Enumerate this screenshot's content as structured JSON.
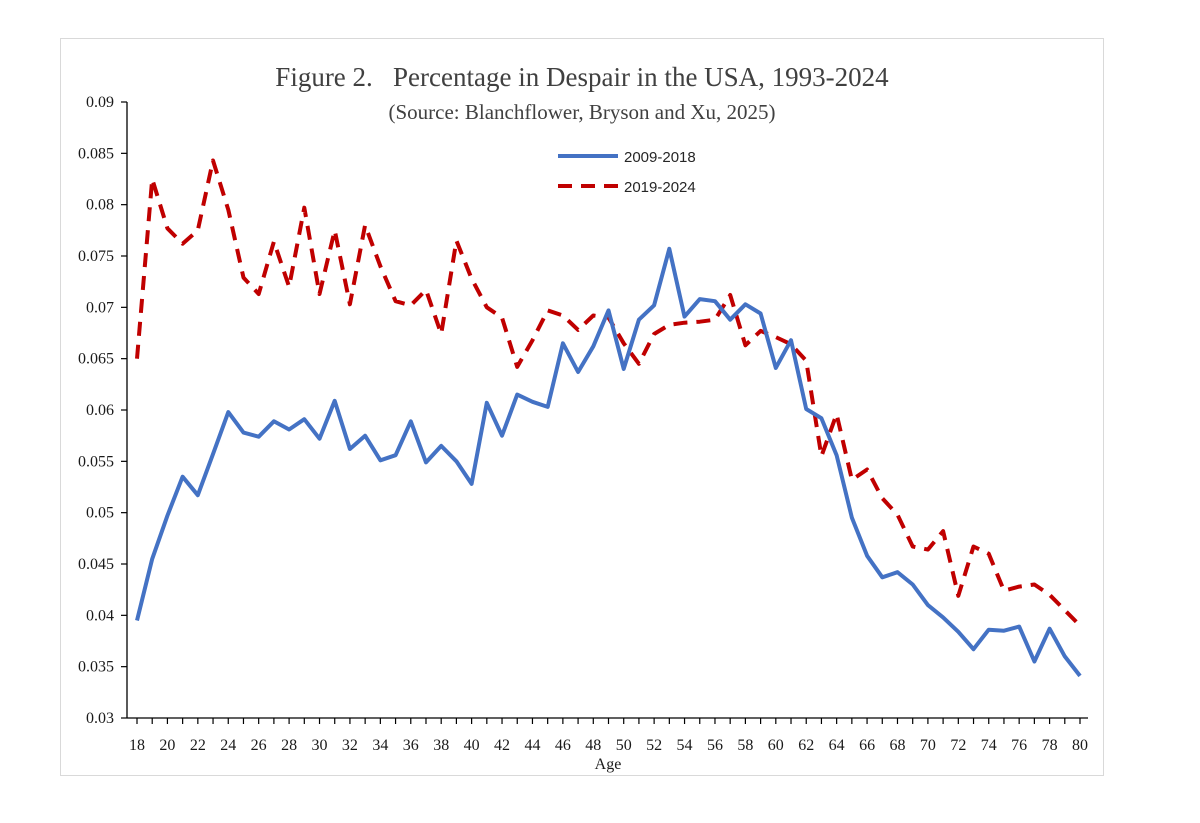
{
  "chart_data": {
    "type": "line",
    "title": "Figure 2.   Percentage in Despair in the USA, 1993-2024",
    "subtitle": "(Source: Blanchflower, Bryson and Xu, 2025)",
    "xlabel": "Age",
    "ylabel": "",
    "xlim": [
      18,
      80
    ],
    "ylim": [
      0.03,
      0.09
    ],
    "y_ticks": [
      "0.03",
      "0.035",
      "0.04",
      "0.045",
      "0.05",
      "0.055",
      "0.06",
      "0.065",
      "0.07",
      "0.075",
      "0.08",
      "0.085",
      "0.09"
    ],
    "x_ticks": [
      "18",
      "20",
      "22",
      "24",
      "26",
      "28",
      "30",
      "32",
      "34",
      "36",
      "38",
      "40",
      "42",
      "44",
      "46",
      "48",
      "50",
      "52",
      "54",
      "56",
      "58",
      "60",
      "62",
      "64",
      "66",
      "68",
      "70",
      "72",
      "74",
      "76",
      "78",
      "80"
    ],
    "x": [
      18,
      19,
      20,
      21,
      22,
      23,
      24,
      25,
      26,
      27,
      28,
      29,
      30,
      31,
      32,
      33,
      34,
      35,
      36,
      37,
      38,
      39,
      40,
      41,
      42,
      43,
      44,
      45,
      46,
      47,
      48,
      49,
      50,
      51,
      52,
      53,
      54,
      55,
      56,
      57,
      58,
      59,
      60,
      61,
      62,
      63,
      64,
      65,
      66,
      67,
      68,
      69,
      70,
      71,
      72,
      73,
      74,
      75,
      76,
      77,
      78,
      79,
      80
    ],
    "series": [
      {
        "name": "2009-2018",
        "color": "#4472c4",
        "style": "solid",
        "values": [
          0.0395,
          0.0455,
          0.0497,
          0.0535,
          0.0517,
          0.0557,
          0.0598,
          0.0578,
          0.0574,
          0.0589,
          0.0581,
          0.0591,
          0.0572,
          0.0609,
          0.0562,
          0.0575,
          0.0551,
          0.0556,
          0.0589,
          0.0549,
          0.0565,
          0.055,
          0.0528,
          0.0607,
          0.0575,
          0.0615,
          0.0608,
          0.0603,
          0.0665,
          0.0637,
          0.0662,
          0.0697,
          0.064,
          0.0688,
          0.0702,
          0.0757,
          0.0691,
          0.0708,
          0.0706,
          0.0688,
          0.0703,
          0.0694,
          0.0641,
          0.0668,
          0.0601,
          0.0592,
          0.0556,
          0.0495,
          0.0458,
          0.0437,
          0.0442,
          0.043,
          0.041,
          0.0398,
          0.0384,
          0.0367,
          0.0386,
          0.0385,
          0.0389,
          0.0355,
          0.0387,
          0.036,
          0.0341
        ]
      },
      {
        "name": "2019-2024",
        "color": "#c00000",
        "style": "dashed",
        "values": [
          0.065,
          0.0825,
          0.0777,
          0.0762,
          0.0775,
          0.0843,
          0.0795,
          0.0729,
          0.0713,
          0.0764,
          0.072,
          0.0797,
          0.0713,
          0.0775,
          0.0703,
          0.078,
          0.074,
          0.0706,
          0.0702,
          0.0717,
          0.0674,
          0.0765,
          0.0728,
          0.07,
          0.069,
          0.0642,
          0.0668,
          0.0697,
          0.0692,
          0.0678,
          0.0692,
          0.069,
          0.0665,
          0.0645,
          0.0674,
          0.0683,
          0.0685,
          0.0686,
          0.0688,
          0.0712,
          0.0663,
          0.0677,
          0.0671,
          0.0664,
          0.0648,
          0.0555,
          0.0596,
          0.0532,
          0.0542,
          0.0514,
          0.0498,
          0.0467,
          0.0464,
          0.0482,
          0.0419,
          0.0467,
          0.046,
          0.0424,
          0.0428,
          0.043,
          0.042,
          0.0405,
          0.039
        ]
      }
    ],
    "legend_position": "top-center"
  }
}
